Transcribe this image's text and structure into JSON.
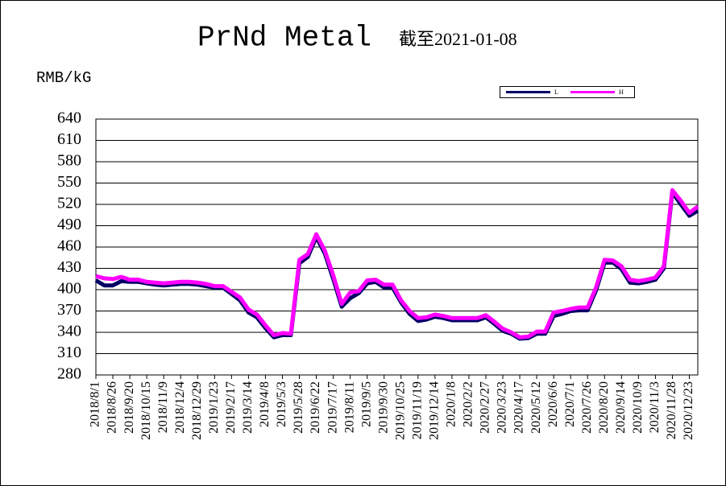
{
  "chart_data": {
    "type": "line",
    "title": "PrNd Metal",
    "subtitle": "截至2021-01-08",
    "y_axis_label": "RMB/kG",
    "categories": [
      "2018/8/1",
      null,
      "2018/8/26",
      null,
      "2018/9/20",
      null,
      "2018/10/15",
      null,
      "2018/11/9",
      null,
      "2018/12/4",
      null,
      "2018/12/29",
      null,
      "2019/1/23",
      null,
      "2019/2/17",
      null,
      "2019/3/14",
      null,
      "2019/4/8",
      null,
      "2019/5/3",
      null,
      "2019/5/28",
      null,
      "2019/6/22",
      null,
      "2019/7/17",
      null,
      "2019/8/11",
      null,
      "2019/9/5",
      null,
      "2019/9/30",
      null,
      "2019/10/25",
      null,
      "2019/11/19",
      null,
      "2019/12/14",
      null,
      "2020/1/8",
      null,
      "2020/2/2",
      null,
      "2020/2/27",
      null,
      "2020/3/23",
      null,
      "2020/4/17",
      null,
      "2020/5/12",
      null,
      "2020/6/6",
      null,
      "2020/7/1",
      null,
      "2020/7/26",
      null,
      "2020/8/20",
      null,
      "2020/9/14",
      null,
      "2020/10/9",
      null,
      "2020/11/3",
      null,
      "2020/11/28",
      null,
      "2020/12/23",
      null
    ],
    "series": [
      {
        "name": "L",
        "color": "#000066",
        "values": [
          413,
          406,
          406,
          412,
          411,
          411,
          409,
          407,
          406,
          407,
          408,
          408,
          407,
          405,
          403,
          403,
          394,
          385,
          368,
          361,
          346,
          333,
          336,
          336,
          437,
          446,
          474,
          451,
          415,
          376,
          388,
          395,
          409,
          411,
          403,
          403,
          382,
          366,
          356,
          358,
          362,
          360,
          357,
          357,
          357,
          357,
          361,
          352,
          342,
          338,
          331,
          332,
          338,
          338,
          363,
          366,
          370,
          371,
          371,
          399,
          438,
          438,
          429,
          410,
          409,
          411,
          414,
          430,
          537,
          520,
          504,
          511
        ]
      },
      {
        "name": "H",
        "color": "#ff00ff",
        "values": [
          419,
          416,
          415,
          418,
          414,
          414,
          411,
          410,
          409,
          410,
          411,
          411,
          410,
          408,
          405,
          405,
          397,
          389,
          372,
          365,
          350,
          336,
          339,
          338,
          442,
          450,
          478,
          455,
          420,
          380,
          396,
          398,
          413,
          414,
          407,
          407,
          385,
          370,
          360,
          361,
          365,
          363,
          360,
          360,
          360,
          360,
          364,
          355,
          345,
          340,
          333,
          334,
          341,
          341,
          368,
          370,
          373,
          375,
          375,
          403,
          442,
          441,
          433,
          414,
          412,
          414,
          417,
          433,
          540,
          525,
          508,
          517
        ]
      }
    ],
    "ylim": [
      280,
      640
    ],
    "yticks": [
      280,
      310,
      340,
      370,
      400,
      430,
      460,
      490,
      520,
      550,
      580,
      610,
      640
    ],
    "grid": true
  }
}
